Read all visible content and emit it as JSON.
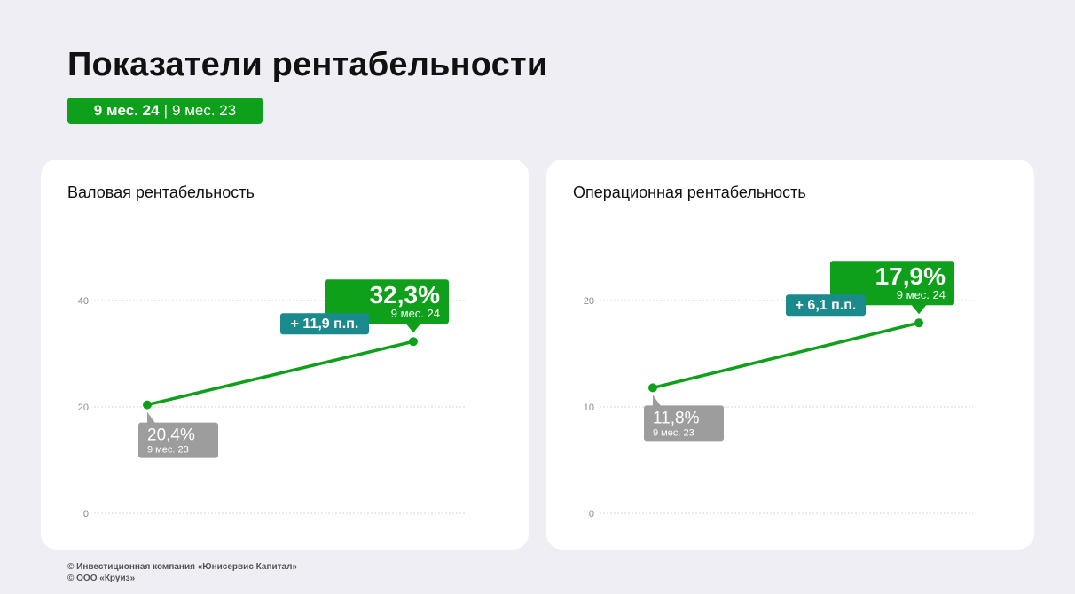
{
  "page": {
    "title": "Показатели рентабельности",
    "period_current": "9 мес. 24",
    "period_separator": "|",
    "period_previous": "9 мес. 23"
  },
  "colors": {
    "accent_green": "#0ea01a",
    "delta_teal": "#1a8a8c",
    "prev_gray": "#9d9d9d",
    "background": "#efeef5"
  },
  "footer": {
    "line1": "© Инвестиционная компания «Юнисервис Капитал»",
    "line2": "© ООО «Круиз»"
  },
  "chart_data": [
    {
      "type": "line",
      "title": "Валовая рентабельность",
      "ylim": [
        0,
        40
      ],
      "yticks": [
        "0",
        "20",
        "40"
      ],
      "grid": true,
      "x": [
        "9 мес. 23",
        "9 мес. 24"
      ],
      "values": [
        20.4,
        32.3
      ],
      "labels": [
        "20,4%",
        "32,3%"
      ],
      "period_labels": [
        "9 мес. 23",
        "9 мес. 24"
      ],
      "delta": "+ 11,9 п.п."
    },
    {
      "type": "line",
      "title": "Операционная рентабельность",
      "ylim": [
        0,
        20
      ],
      "yticks": [
        "0",
        "10",
        "20"
      ],
      "grid": true,
      "x": [
        "9 мес. 23",
        "9 мес. 24"
      ],
      "values": [
        11.8,
        17.9
      ],
      "labels": [
        "11,8%",
        "17,9%"
      ],
      "period_labels": [
        "9 мес. 23",
        "9 мес. 24"
      ],
      "delta": "+ 6,1 п.п."
    }
  ]
}
